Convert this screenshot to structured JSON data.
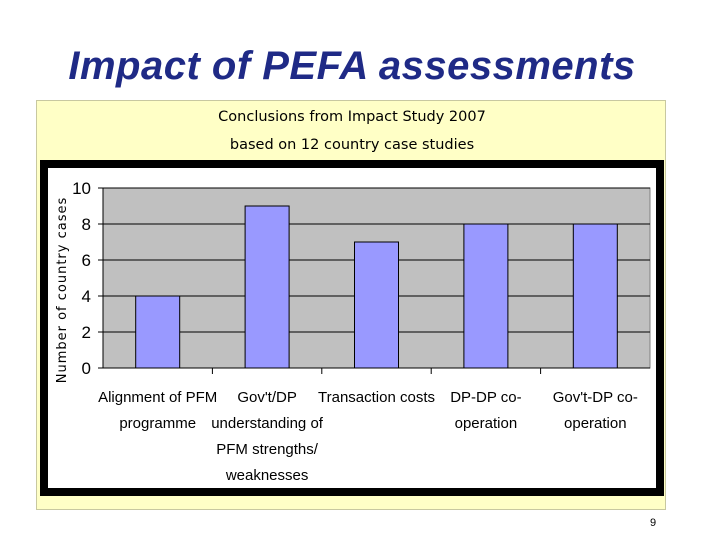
{
  "slide": {
    "title": "Impact of PEFA assessments",
    "page_number": "9"
  },
  "panel": {
    "heading_line1": "Conclusions from Impact Study 2007",
    "heading_line2": "based on 12 country case studies",
    "background_color": "#ffffc6"
  },
  "chart_data": {
    "type": "bar",
    "ylabel": "Number of country cases",
    "ylim": [
      0,
      10
    ],
    "yticks": [
      0,
      2,
      4,
      6,
      8,
      10
    ],
    "grid": true,
    "categories": [
      [
        "Alignment of PFM",
        "programme"
      ],
      [
        "Gov't/DP",
        "understanding of",
        "PFM strengths/",
        "weaknesses"
      ],
      [
        "Transaction costs"
      ],
      [
        "DP-DP co-",
        "operation"
      ],
      [
        "Gov't-DP co-",
        "operation"
      ]
    ],
    "values": [
      4,
      9,
      7,
      8,
      8
    ],
    "bar_color": "#9999ff",
    "plot_background": "#c0c0c0"
  }
}
